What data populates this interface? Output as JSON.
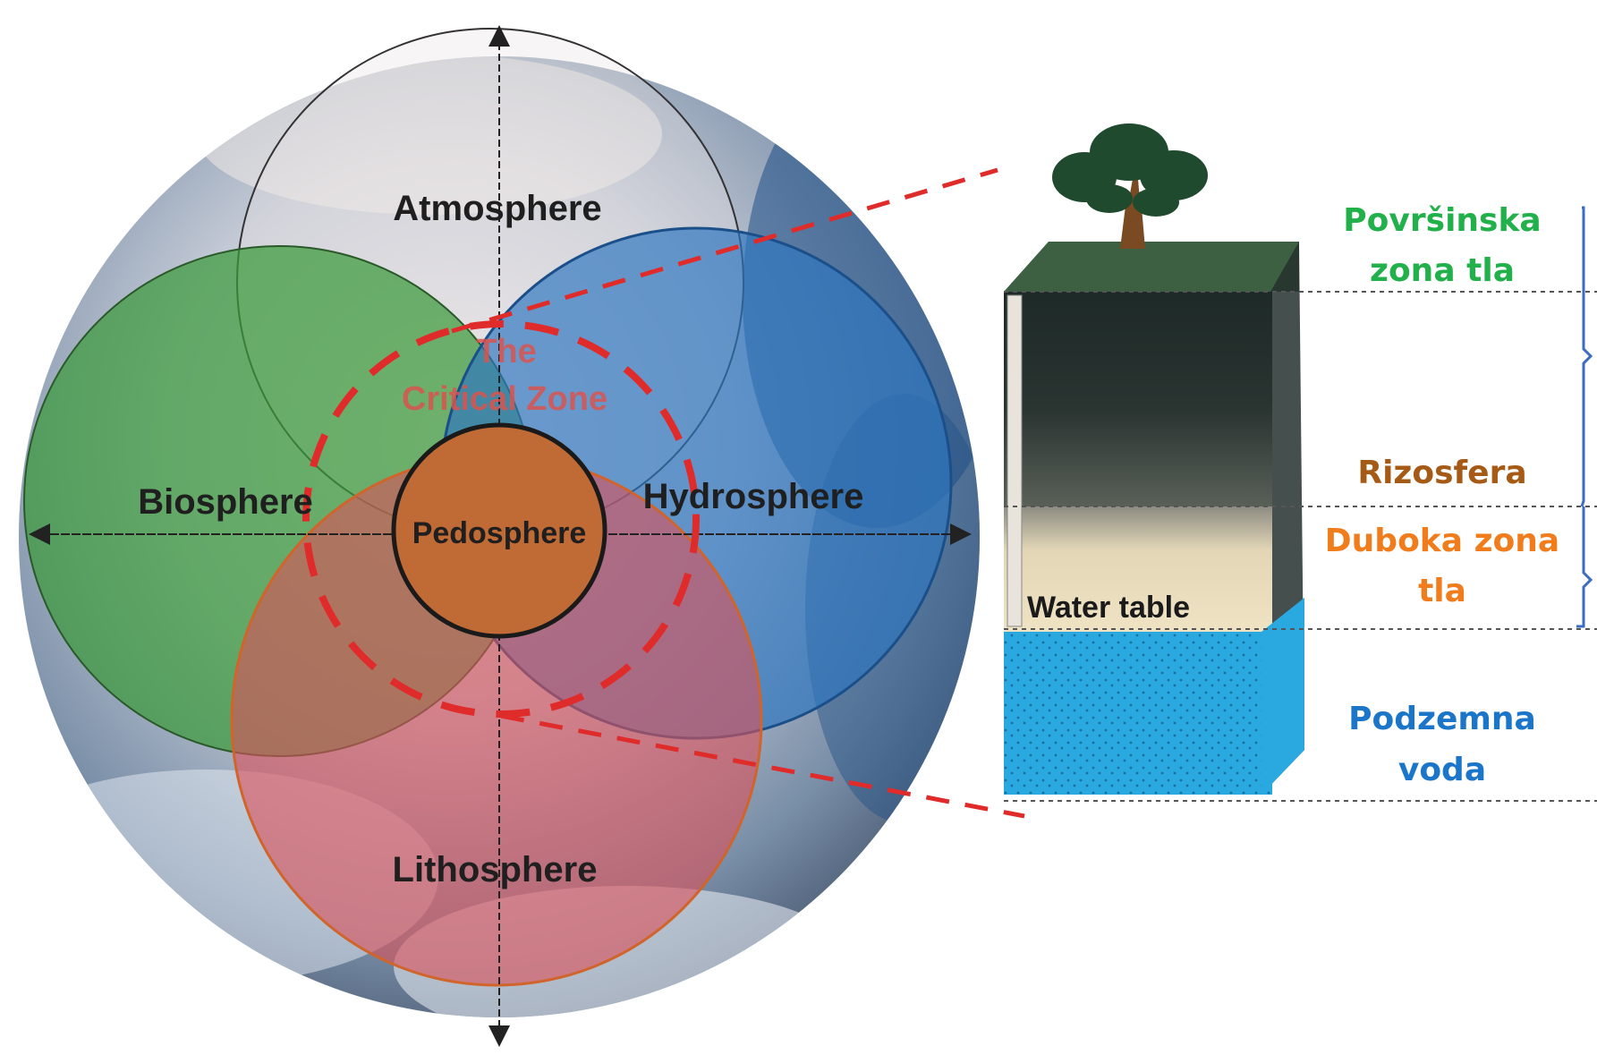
{
  "diagram": {
    "spheres": {
      "atmosphere": "Atmosphere",
      "biosphere": "Biosphere",
      "hydrosphere": "Hydrosphere",
      "lithosphere": "Lithosphere",
      "pedosphere": "Pedosphere"
    },
    "critical_zone": {
      "line1": "The",
      "line2": "Critical Zone"
    },
    "soil_column": {
      "water_table": "Water table"
    },
    "zones": {
      "surface": {
        "line1": "Površinska",
        "line2": "zona tla",
        "color": "#22b04b"
      },
      "rhizosphere": {
        "line1": "Rizosfera",
        "color": "#a55a16"
      },
      "deep": {
        "line1": "Duboka zona",
        "line2": "tla",
        "color": "#f07c1c"
      },
      "groundwater": {
        "line1": "Podzemna",
        "line2": "voda",
        "color": "#1b75c9"
      }
    },
    "colors": {
      "critical_zone": "#e02b2b",
      "pedosphere": "#c06a35",
      "water": "#2aa9e0",
      "bracket": "#3a6cc0"
    }
  }
}
